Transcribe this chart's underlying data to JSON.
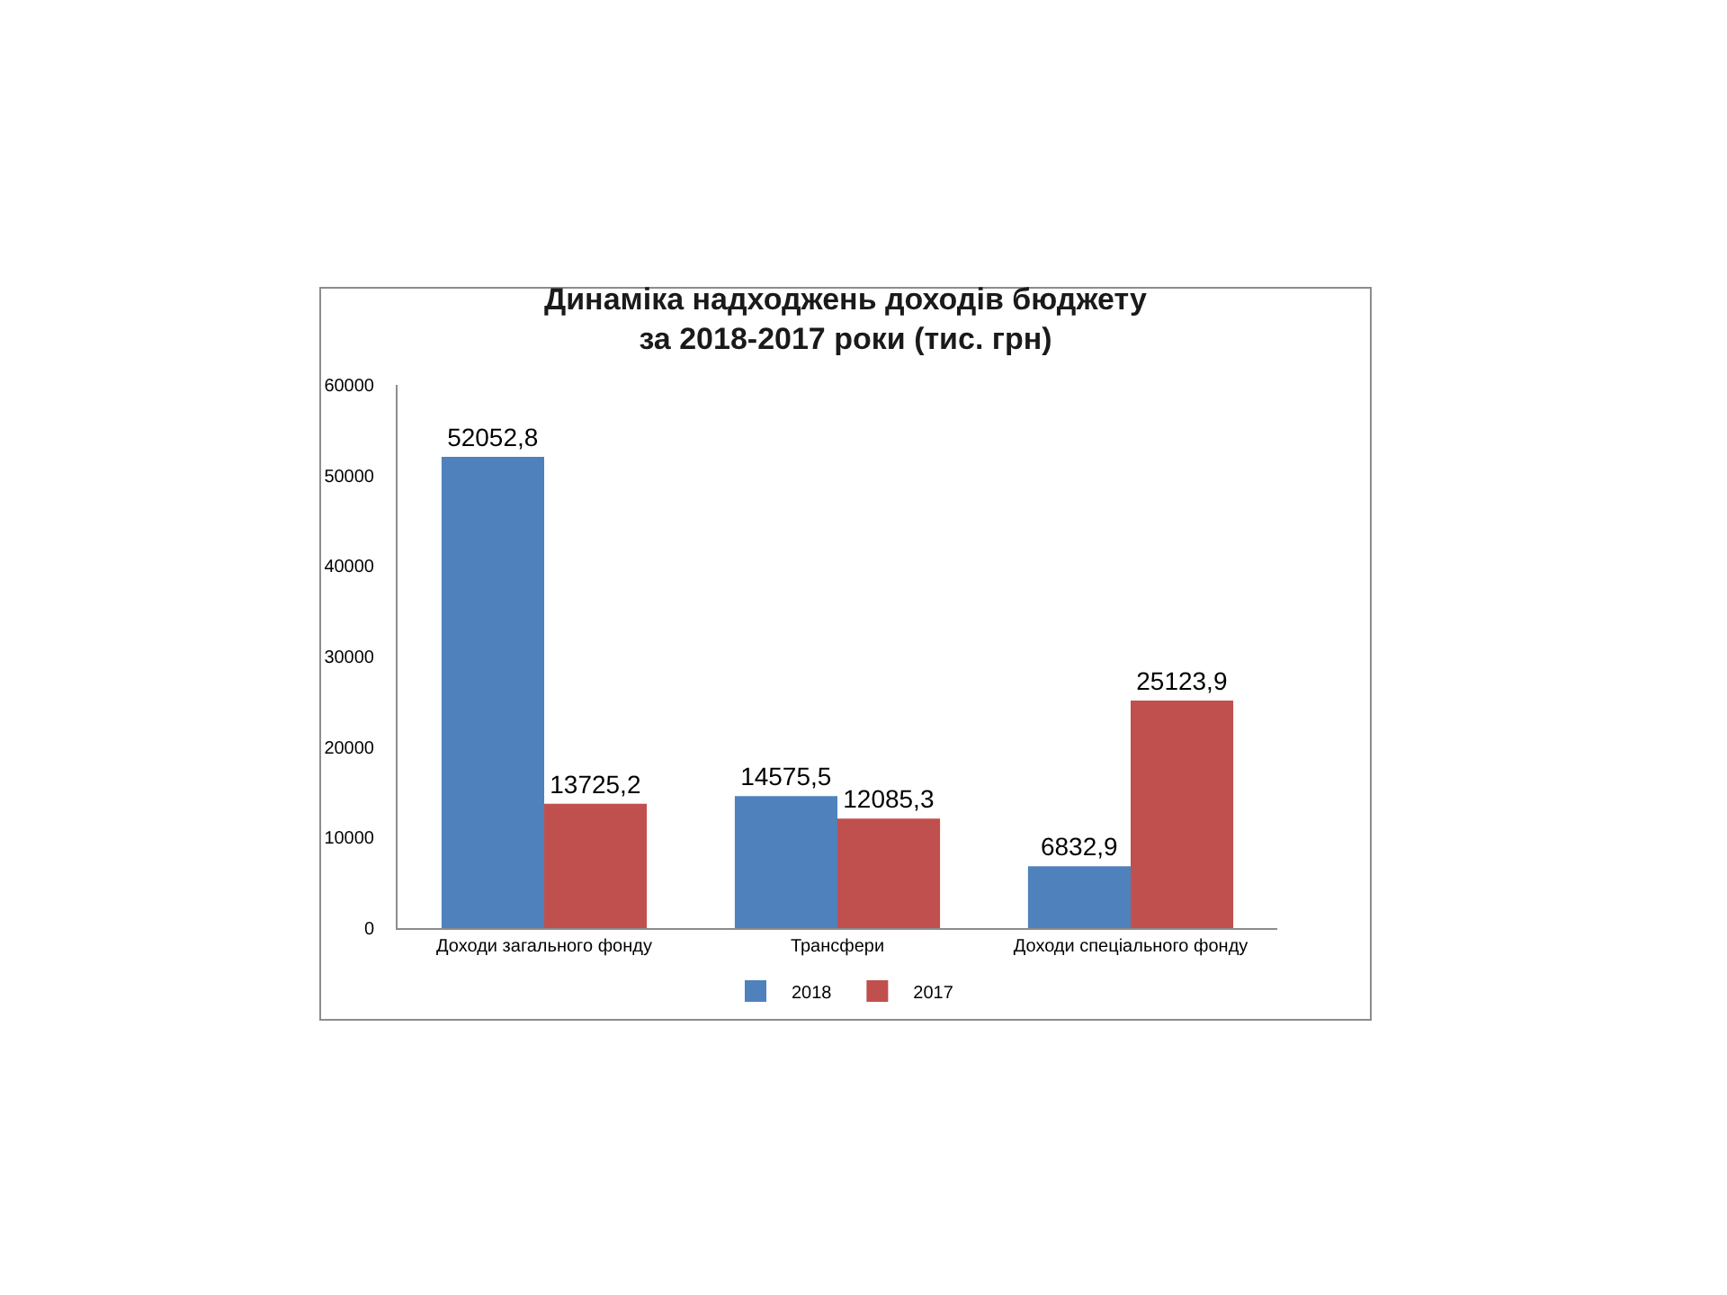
{
  "chart_data": {
    "type": "bar",
    "title": "Динаміка надходжень доходів бюджету\nза 2018-2017 роки (тис. грн)",
    "categories": [
      "Доходи загального фонду",
      "Трансфери",
      "Доходи спеціального фонду"
    ],
    "series": [
      {
        "name": "2018",
        "color": "#4f81bd",
        "values": [
          52052.8,
          14575.5,
          6832.9
        ],
        "value_labels": [
          "52052,8",
          "14575,5",
          "6832,9"
        ]
      },
      {
        "name": "2017",
        "color": "#c0504d",
        "values": [
          13725.2,
          12085.3,
          25123.9
        ],
        "value_labels": [
          "13725,2",
          "12085,3",
          "25123,9"
        ]
      }
    ],
    "ylim": [
      0,
      60000
    ],
    "yticks": [
      0,
      10000,
      20000,
      30000,
      40000,
      50000,
      60000
    ],
    "grid": false,
    "legend": "bottom"
  }
}
